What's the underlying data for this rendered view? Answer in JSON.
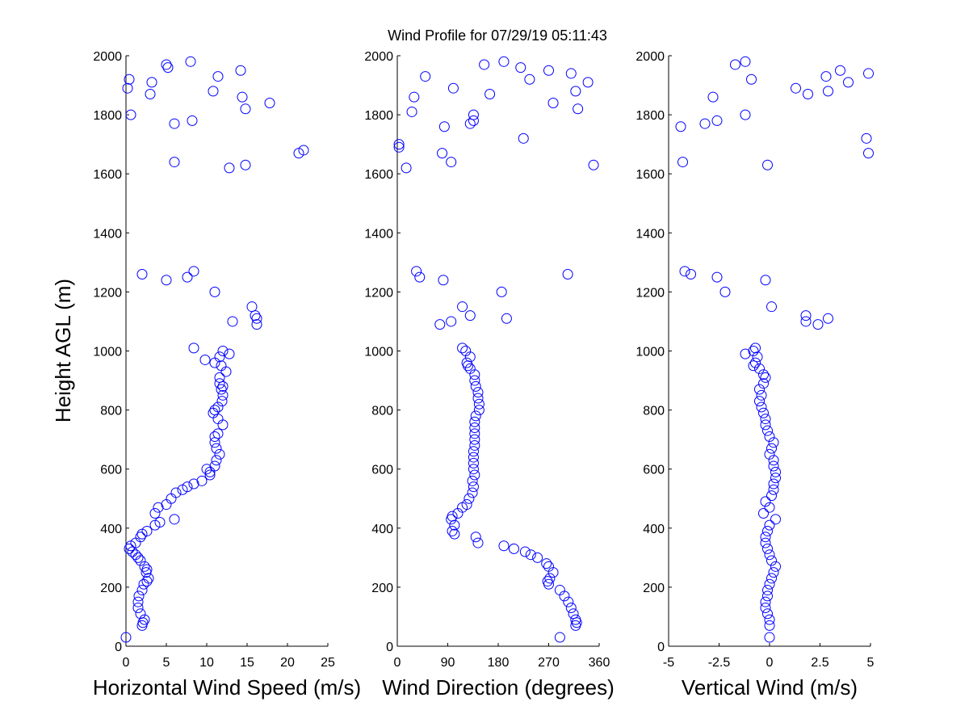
{
  "title": "Wind Profile for  07/29/19 05:11:43",
  "colors": {
    "marker": "#0000ff",
    "axis": "#000000",
    "background": "#ffffff"
  },
  "chart_data": [
    {
      "type": "scatter",
      "id": "speed",
      "xlabel": "Horizontal Wind Speed (m/s)",
      "ylabel": "Height AGL (m)",
      "xlim": [
        0,
        25
      ],
      "ylim": [
        0,
        2000
      ],
      "xticks": [
        "0",
        "5",
        "10",
        "15",
        "20",
        "25"
      ],
      "xtick_values": [
        0,
        5,
        10,
        15,
        20,
        25
      ],
      "yticks": [
        "0",
        "200",
        "400",
        "600",
        "800",
        "1000",
        "1200",
        "1400",
        "1600",
        "1800",
        "2000"
      ],
      "ytick_values": [
        0,
        200,
        400,
        600,
        800,
        1000,
        1200,
        1400,
        1600,
        1800,
        2000
      ],
      "y": [
        30,
        70,
        80,
        90,
        110,
        130,
        150,
        170,
        190,
        210,
        220,
        230,
        250,
        260,
        270,
        290,
        300,
        310,
        320,
        330,
        340,
        350,
        370,
        380,
        390,
        410,
        420,
        430,
        450,
        470,
        480,
        500,
        520,
        530,
        540,
        550,
        560,
        580,
        590,
        600,
        610,
        630,
        650,
        670,
        690,
        710,
        720,
        750,
        770,
        790,
        800,
        810,
        830,
        850,
        870,
        880,
        890,
        910,
        930,
        950,
        960,
        970,
        980,
        990,
        1000,
        1010,
        1090,
        1100,
        1110,
        1120,
        1150,
        1200,
        1240,
        1250,
        1260,
        1270,
        1620,
        1630,
        1640,
        1670,
        1680,
        1770,
        1780,
        1800,
        1820,
        1840,
        1860,
        1870,
        1880,
        1890,
        1910,
        1920,
        1930,
        1950,
        1960,
        1970,
        1980
      ],
      "x": [
        0.0,
        2.0,
        2.1,
        2.3,
        1.8,
        1.5,
        1.5,
        1.6,
        2.0,
        2.2,
        2.6,
        2.8,
        2.5,
        2.6,
        2.3,
        1.8,
        1.5,
        1.2,
        0.8,
        0.4,
        0.6,
        1.2,
        1.8,
        2.0,
        2.6,
        3.6,
        4.2,
        6.0,
        3.6,
        4.0,
        5.0,
        5.6,
        6.2,
        7.0,
        7.6,
        8.4,
        9.4,
        10.4,
        10.4,
        10.0,
        11.0,
        11.2,
        11.6,
        11.2,
        11.0,
        11.0,
        11.4,
        12.0,
        11.4,
        10.8,
        11.0,
        11.4,
        11.9,
        12.0,
        11.8,
        12.0,
        11.6,
        11.6,
        12.4,
        11.8,
        11.0,
        9.8,
        11.6,
        12.8,
        12.0,
        8.4,
        16.2,
        13.2,
        16.2,
        16.0,
        15.6,
        11.0,
        5.0,
        7.6,
        2.0,
        8.4,
        12.8,
        14.8,
        6.0,
        21.4,
        22.0,
        6.0,
        8.2,
        0.6,
        14.8,
        17.8,
        14.4,
        3.0,
        10.8,
        0.2,
        3.2,
        0.4,
        11.4,
        14.2,
        5.2,
        5.0,
        8.0
      ]
    },
    {
      "type": "scatter",
      "id": "direction",
      "xlabel": "Wind Direction (degrees)",
      "ylabel": "",
      "xlim": [
        0,
        360
      ],
      "ylim": [
        0,
        2000
      ],
      "xticks": [
        "0",
        "90",
        "180",
        "270",
        "360"
      ],
      "xtick_values": [
        0,
        90,
        180,
        270,
        360
      ],
      "yticks": [
        "0",
        "200",
        "400",
        "600",
        "800",
        "1000",
        "1200",
        "1400",
        "1600",
        "1800",
        "2000"
      ],
      "ytick_values": [
        0,
        200,
        400,
        600,
        800,
        1000,
        1200,
        1400,
        1600,
        1800,
        2000
      ],
      "y": [
        30,
        70,
        80,
        90,
        110,
        130,
        150,
        170,
        190,
        210,
        220,
        230,
        250,
        270,
        280,
        300,
        310,
        320,
        330,
        340,
        350,
        370,
        380,
        390,
        410,
        430,
        440,
        450,
        470,
        480,
        500,
        520,
        540,
        560,
        580,
        600,
        620,
        640,
        660,
        680,
        700,
        720,
        740,
        760,
        780,
        800,
        820,
        840,
        860,
        880,
        900,
        920,
        940,
        950,
        960,
        980,
        1000,
        1010,
        1090,
        1100,
        1110,
        1120,
        1150,
        1200,
        1240,
        1250,
        1260,
        1270,
        1620,
        1630,
        1640,
        1670,
        1690,
        1700,
        1720,
        1760,
        1770,
        1780,
        1800,
        1810,
        1820,
        1840,
        1860,
        1870,
        1880,
        1890,
        1910,
        1920,
        1930,
        1940,
        1950,
        1960,
        1970,
        1980
      ],
      "x": [
        290,
        318,
        320,
        318,
        314,
        310,
        305,
        298,
        290,
        270,
        268,
        272,
        278,
        270,
        266,
        250,
        238,
        228,
        208,
        190,
        144,
        140,
        102,
        98,
        102,
        96,
        98,
        108,
        116,
        124,
        128,
        134,
        136,
        134,
        138,
        136,
        136,
        136,
        136,
        138,
        138,
        138,
        138,
        138,
        140,
        146,
        146,
        144,
        144,
        140,
        138,
        138,
        130,
        126,
        124,
        130,
        122,
        116,
        76,
        96,
        195,
        130,
        116,
        186,
        82,
        40,
        304,
        34,
        16,
        350,
        96,
        80,
        3,
        3,
        225,
        84,
        130,
        136,
        136,
        26,
        322,
        278,
        30,
        165,
        318,
        100,
        340,
        236,
        50,
        310,
        270,
        220,
        155,
        190
      ]
    },
    {
      "type": "scatter",
      "id": "vertical",
      "xlabel": "Vertical Wind (m/s)",
      "ylabel": "",
      "xlim": [
        -5,
        5
      ],
      "ylim": [
        0,
        2000
      ],
      "xticks": [
        "-5",
        "-2.5",
        "0",
        "2.5",
        "5"
      ],
      "xtick_values": [
        -5,
        -2.5,
        0,
        2.5,
        5
      ],
      "yticks": [
        "0",
        "200",
        "400",
        "600",
        "800",
        "1000",
        "1200",
        "1400",
        "1600",
        "1800",
        "2000"
      ],
      "ytick_values": [
        0,
        200,
        400,
        600,
        800,
        1000,
        1200,
        1400,
        1600,
        1800,
        2000
      ],
      "y": [
        30,
        70,
        90,
        110,
        130,
        150,
        170,
        190,
        210,
        230,
        250,
        270,
        290,
        310,
        330,
        350,
        370,
        390,
        410,
        430,
        450,
        470,
        490,
        510,
        530,
        550,
        570,
        590,
        610,
        630,
        650,
        670,
        690,
        710,
        730,
        750,
        770,
        790,
        810,
        830,
        850,
        870,
        890,
        910,
        920,
        940,
        950,
        960,
        980,
        990,
        1000,
        1010,
        1090,
        1100,
        1110,
        1120,
        1150,
        1200,
        1240,
        1250,
        1260,
        1270,
        1630,
        1640,
        1670,
        1720,
        1760,
        1770,
        1780,
        1800,
        1860,
        1870,
        1880,
        1890,
        1910,
        1920,
        1930,
        1940,
        1950,
        1970,
        1980
      ],
      "x": [
        0.0,
        0.0,
        0.0,
        -0.1,
        -0.2,
        -0.2,
        -0.1,
        -0.1,
        0.0,
        0.1,
        0.2,
        0.3,
        0.1,
        0.0,
        -0.1,
        -0.2,
        -0.2,
        -0.1,
        0.0,
        0.3,
        -0.3,
        0.0,
        -0.2,
        0.1,
        0.2,
        0.2,
        0.3,
        0.3,
        0.2,
        0.2,
        0.0,
        0.1,
        0.2,
        0.0,
        -0.1,
        -0.2,
        -0.2,
        -0.3,
        -0.4,
        -0.5,
        -0.4,
        -0.5,
        -0.3,
        -0.2,
        -0.3,
        -0.5,
        -0.8,
        -0.7,
        -0.6,
        -1.2,
        -0.8,
        -0.7,
        2.4,
        1.8,
        2.9,
        1.8,
        0.1,
        -2.2,
        -0.2,
        -2.6,
        -3.9,
        -4.2,
        -0.1,
        -4.3,
        4.9,
        4.8,
        -4.4,
        -3.2,
        -2.6,
        -1.2,
        -2.8,
        1.9,
        2.9,
        1.3,
        3.9,
        -0.9,
        2.8,
        4.9,
        3.5,
        -1.7,
        -1.2
      ]
    }
  ]
}
